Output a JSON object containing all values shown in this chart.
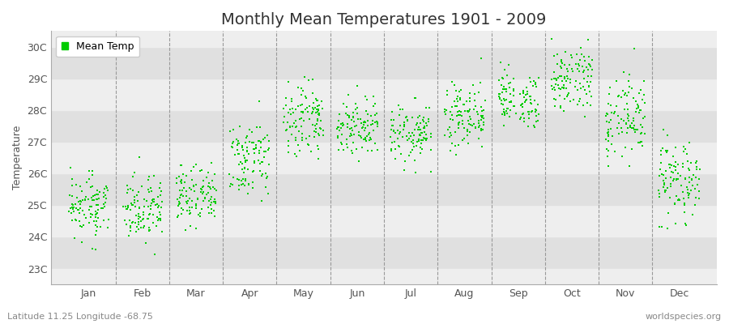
{
  "title": "Monthly Mean Temperatures 1901 - 2009",
  "ylabel": "Temperature",
  "xlabel_labels": [
    "Jan",
    "Feb",
    "Mar",
    "Apr",
    "May",
    "Jun",
    "Jul",
    "Aug",
    "Sep",
    "Oct",
    "Nov",
    "Dec"
  ],
  "ytick_labels": [
    "23C",
    "24C",
    "25C",
    "26C",
    "27C",
    "28C",
    "29C",
    "30C"
  ],
  "ytick_values": [
    23,
    24,
    25,
    26,
    27,
    28,
    29,
    30
  ],
  "ylim": [
    22.5,
    30.5
  ],
  "dot_color": "#00cc00",
  "dot_size": 2.5,
  "legend_label": "Mean Temp",
  "footer_left": "Latitude 11.25 Longitude -68.75",
  "footer_right": "worldspecies.org",
  "bg_color": "#ffffff",
  "plot_bg_color": "#eeeeee",
  "title_fontsize": 14,
  "axis_fontsize": 9,
  "tick_fontsize": 9,
  "month_means": [
    25.0,
    24.9,
    25.2,
    26.5,
    27.8,
    27.5,
    27.3,
    27.8,
    28.3,
    28.9,
    27.8,
    25.8
  ],
  "month_stds": [
    0.45,
    0.5,
    0.5,
    0.55,
    0.55,
    0.5,
    0.45,
    0.5,
    0.5,
    0.55,
    0.65,
    0.7
  ],
  "n_years": 109,
  "vline_color": "#999999",
  "band_colors": [
    "#e0e0e0",
    "#eeeeee"
  ],
  "spine_color": "#aaaaaa",
  "text_color": "#555555",
  "footer_color": "#888888"
}
